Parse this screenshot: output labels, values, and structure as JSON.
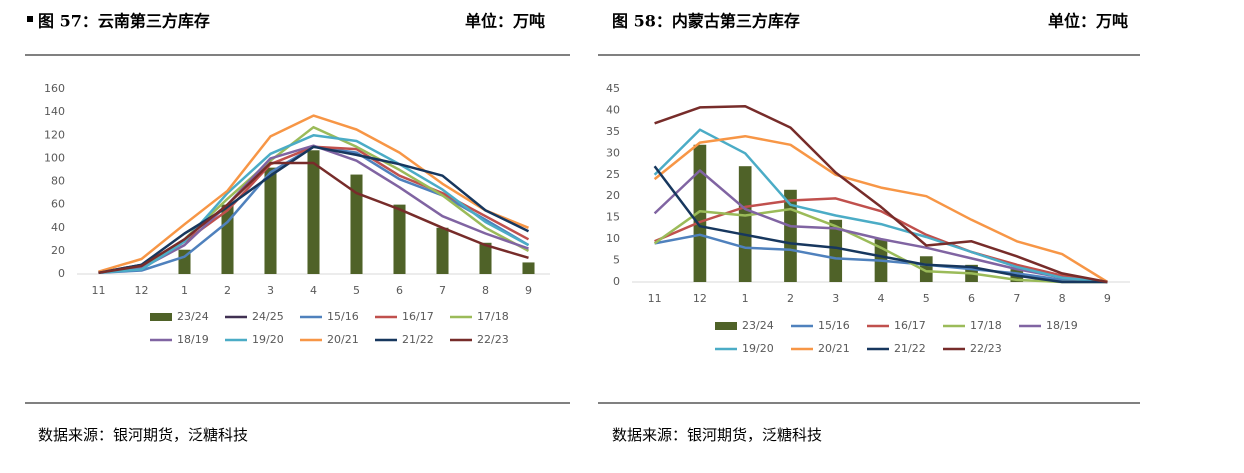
{
  "chart_data": [
    {
      "type": "combo",
      "title": "图 57：云南第三方库存",
      "unit": "单位：万吨",
      "source": "数据来源：银河期货，泛糖科技",
      "categories": [
        "11",
        "12",
        "1",
        "2",
        "3",
        "4",
        "5",
        "6",
        "7",
        "8",
        "9"
      ],
      "ylim": [
        0,
        160
      ],
      "yticks": [
        0,
        20,
        40,
        60,
        80,
        100,
        120,
        140,
        160
      ],
      "series": [
        {
          "name": "23/24",
          "type": "bar",
          "color": "#4f6228",
          "values": [
            null,
            null,
            21,
            60,
            92,
            107,
            86,
            60,
            40,
            27,
            10
          ]
        },
        {
          "name": "24/25",
          "type": "line",
          "color": "#403152",
          "values": [
            1,
            8,
            null,
            null,
            null,
            null,
            null,
            null,
            null,
            null,
            null
          ]
        },
        {
          "name": "15/16",
          "type": "line",
          "color": "#4f81bd",
          "values": [
            1,
            3,
            15,
            45,
            88,
            110,
            105,
            82,
            68,
            47,
            25
          ]
        },
        {
          "name": "16/17",
          "type": "line",
          "color": "#c0504d",
          "values": [
            1,
            5,
            28,
            55,
            95,
            110,
            108,
            85,
            70,
            50,
            30
          ]
        },
        {
          "name": "17/18",
          "type": "line",
          "color": "#9bbb59",
          "values": [
            1,
            6,
            30,
            65,
            98,
            127,
            110,
            90,
            68,
            40,
            20
          ]
        },
        {
          "name": "18/19",
          "type": "line",
          "color": "#8064a2",
          "values": [
            1,
            5,
            25,
            60,
            100,
            111,
            98,
            75,
            50,
            35,
            22
          ]
        },
        {
          "name": "19/20",
          "type": "line",
          "color": "#4bacc6",
          "values": [
            1,
            4,
            28,
            70,
            104,
            120,
            115,
            95,
            73,
            45,
            25
          ]
        },
        {
          "name": "20/21",
          "type": "line",
          "color": "#f79646",
          "values": [
            2,
            13,
            43,
            72,
            119,
            137,
            125,
            105,
            78,
            55,
            40
          ]
        },
        {
          "name": "21/22",
          "type": "line",
          "color": "#17375e",
          "values": [
            1,
            8,
            35,
            58,
            85,
            110,
            103,
            95,
            85,
            55,
            37
          ]
        },
        {
          "name": "22/23",
          "type": "line",
          "color": "#772c2a",
          "values": [
            1,
            7,
            30,
            60,
            96,
            96,
            70,
            56,
            40,
            25,
            14
          ]
        }
      ]
    },
    {
      "type": "combo",
      "title": "图 58：内蒙古第三方库存",
      "unit": "单位：万吨",
      "source": "数据来源：银河期货，泛糖科技",
      "categories": [
        "11",
        "12",
        "1",
        "2",
        "3",
        "4",
        "5",
        "6",
        "7",
        "8",
        "9"
      ],
      "ylim": [
        0,
        45
      ],
      "yticks": [
        0,
        5,
        10,
        15,
        20,
        25,
        30,
        35,
        40,
        45
      ],
      "series": [
        {
          "name": "23/24",
          "type": "bar",
          "color": "#4f6228",
          "values": [
            null,
            32,
            27,
            21.5,
            14.5,
            10,
            6,
            4,
            3,
            null,
            null
          ]
        },
        {
          "name": "15/16",
          "type": "line",
          "color": "#4f81bd",
          "values": [
            9,
            11,
            8,
            7.5,
            5.5,
            5,
            4,
            3,
            2,
            0.5,
            0
          ]
        },
        {
          "name": "16/17",
          "type": "line",
          "color": "#c0504d",
          "values": [
            9.5,
            14,
            17.5,
            19,
            19.5,
            16.5,
            11,
            7,
            4,
            1.5,
            0
          ]
        },
        {
          "name": "17/18",
          "type": "line",
          "color": "#9bbb59",
          "values": [
            9,
            16.5,
            15.5,
            17,
            13,
            8,
            2.5,
            2,
            0.5,
            0,
            0
          ]
        },
        {
          "name": "18/19",
          "type": "line",
          "color": "#8064a2",
          "values": [
            16,
            26,
            17,
            13,
            12.5,
            10,
            8,
            5.5,
            3,
            1,
            0
          ]
        },
        {
          "name": "19/20",
          "type": "line",
          "color": "#4bacc6",
          "values": [
            25,
            35.5,
            30,
            18,
            15.5,
            13.5,
            10.5,
            7,
            3.5,
            1,
            0
          ]
        },
        {
          "name": "20/21",
          "type": "line",
          "color": "#f79646",
          "values": [
            24,
            32.5,
            34,
            32,
            25,
            22,
            20,
            14.5,
            9.5,
            6.5,
            0
          ]
        },
        {
          "name": "21/22",
          "type": "line",
          "color": "#17375e",
          "values": [
            27,
            13,
            11,
            9,
            8,
            6,
            4,
            3.5,
            1.5,
            0,
            0
          ]
        },
        {
          "name": "22/23",
          "type": "line",
          "color": "#772c2a",
          "values": [
            37,
            40.7,
            41,
            36,
            25.5,
            17.5,
            8.5,
            9.5,
            6,
            2,
            0
          ]
        }
      ]
    }
  ]
}
